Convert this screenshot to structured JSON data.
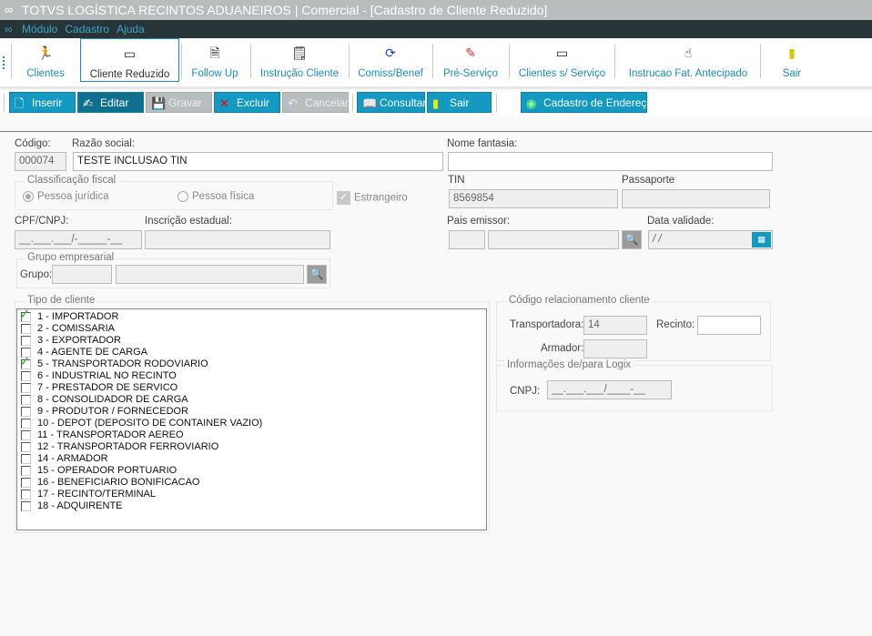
{
  "window": {
    "title": "TOTVS LOGÍSTICA RECINTOS ADUANEIROS | Comercial - [Cadastro de Cliente Reduzido]"
  },
  "menu": [
    "Módulo",
    "Cadastro",
    "Ajuda"
  ],
  "toolbar": [
    {
      "label": "Clientes",
      "icon": "runner-icon"
    },
    {
      "label": "Cliente Reduzido",
      "icon": "monitor-icon",
      "selected": true
    },
    {
      "label": "Follow Up",
      "icon": "document-hand-icon"
    },
    {
      "label": "Instrução Cliente",
      "icon": "document-list-icon"
    },
    {
      "label": "Comiss/Benef",
      "icon": "refresh-icon"
    },
    {
      "label": "Pré-Serviço",
      "icon": "tools-icon"
    },
    {
      "label": "Clientes s/ Serviço",
      "icon": "monitor-icon"
    },
    {
      "label": "Instrucao Fat. Antecipado",
      "icon": "hand-pointer-icon"
    },
    {
      "label": "Sair",
      "icon": "door-exit-icon"
    }
  ],
  "actions": [
    {
      "label": "Inserir",
      "icon": "new-document-icon",
      "state": "enabled"
    },
    {
      "label": "Editar",
      "icon": "edit-icon",
      "state": "active"
    },
    {
      "label": "Gravar",
      "icon": "save-icon",
      "state": "disabled"
    },
    {
      "label": "Excluir",
      "icon": "delete-x-icon",
      "state": "enabled"
    },
    {
      "label": "Cancelar",
      "icon": "undo-icon",
      "state": "disabled"
    },
    {
      "label": "Consultar",
      "icon": "book-icon",
      "state": "enabled"
    },
    {
      "label": "Sair",
      "icon": "door-exit-icon",
      "state": "enabled"
    },
    {
      "label": "Cadastro de Endereço",
      "icon": "address-icon",
      "state": "enabled"
    }
  ],
  "form": {
    "codigo_label": "Código:",
    "codigo": "000074",
    "razao_label": "Razão social:",
    "razao": "TESTE INCLUSAO TIN",
    "fantasia_label": "Nome fantasia:",
    "fantasia": "",
    "classif_legend": "Classificação fiscal",
    "pj": "Pessoa jurídica",
    "pf": "Pessoa física",
    "estrangeiro": "Estrangeiro",
    "tin_label": "TIN",
    "tin": "8569854",
    "passaporte_label": "Passaporte",
    "passaporte": "",
    "cpf_label": "CPF/CNPJ:",
    "cpf": "__.___.___/-_____-__",
    "ie_label": "Inscrição estadual:",
    "ie": "",
    "pais_label": "Pais emissor:",
    "data_label": "Data validade:",
    "data": " / /",
    "grupo_legend": "Grupo empresarial",
    "grupo_label": "Grupo:",
    "tipo_legend": "Tipo de cliente",
    "codrel_legend": "Código relacionamento cliente",
    "transp_label": "Transportadora:",
    "transp": "14",
    "recinto_label": "Recinto:",
    "recinto": "",
    "armador_label": "Armador:",
    "armador": "",
    "logix_legend": "Informações de/para Logix",
    "cnpj_label": "CNPJ:",
    "cnpj": "__.___.___/____-__"
  },
  "tipos": [
    {
      "label": "1 - IMPORTADOR",
      "checked": true
    },
    {
      "label": "2 - COMISSARIA",
      "checked": false
    },
    {
      "label": "3 - EXPORTADOR",
      "checked": false
    },
    {
      "label": "4 - AGENTE DE CARGA",
      "checked": false
    },
    {
      "label": "5 - TRANSPORTADOR RODOVIARIO",
      "checked": true
    },
    {
      "label": "6 - INDUSTRIAL NO RECINTO",
      "checked": false
    },
    {
      "label": "7 - PRESTADOR DE SERVICO",
      "checked": false
    },
    {
      "label": "8 - CONSOLIDADOR DE CARGA",
      "checked": false
    },
    {
      "label": "9 - PRODUTOR / FORNECEDOR",
      "checked": false
    },
    {
      "label": "10 - DEPOT (DEPOSITO DE CONTAINER VAZIO)",
      "checked": false
    },
    {
      "label": "11 - TRANSPORTADOR AEREO",
      "checked": false
    },
    {
      "label": "12 - TRANSPORTADOR FERROVIARIO",
      "checked": false
    },
    {
      "label": "14 - ARMADOR",
      "checked": false
    },
    {
      "label": "15 - OPERADOR PORTUARIO",
      "checked": false
    },
    {
      "label": "16 - BENEFICIARIO BONIFICACAO",
      "checked": false
    },
    {
      "label": "17 - RECINTO/TERMINAL",
      "checked": false
    },
    {
      "label": "18 - ADQUIRENTE",
      "checked": false
    }
  ]
}
